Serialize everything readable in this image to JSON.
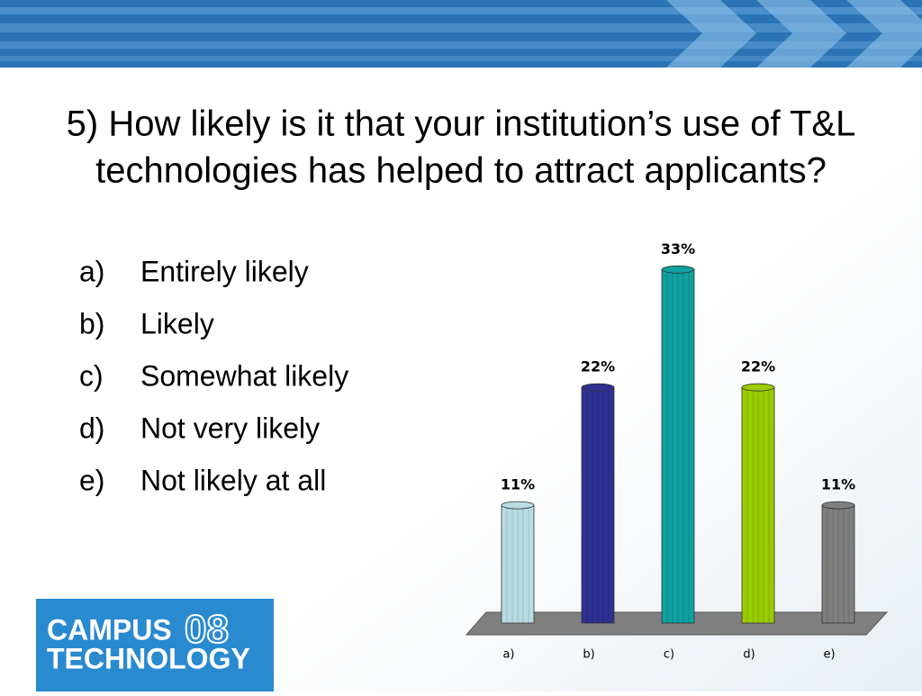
{
  "slide": {
    "title": [
      "5) How likely is it that your institution’s use of T&L",
      "technologies has helped to attract applicants?"
    ],
    "list": [
      {
        "marker": "a)",
        "text": "Entirely likely"
      },
      {
        "marker": "b)",
        "text": "Likely"
      },
      {
        "marker": "c)",
        "text": "Somewhat likely"
      },
      {
        "marker": "d)",
        "text": "Not very likely"
      },
      {
        "marker": "e)",
        "text": "Not likely at all"
      }
    ],
    "logo": {
      "word1": "CAMPUS",
      "number": "08",
      "word2": "TECHNOLOGY"
    }
  },
  "chart_data": {
    "type": "bar",
    "categories": [
      "a)",
      "b)",
      "c)",
      "d)",
      "e)"
    ],
    "values": [
      11,
      22,
      33,
      22,
      11
    ],
    "value_labels": [
      "11%",
      "22%",
      "33%",
      "22%",
      "11%"
    ],
    "colors": [
      "#b7dde3",
      "#2e3192",
      "#10a0a0",
      "#99cc00",
      "#7f7f7f"
    ]
  }
}
